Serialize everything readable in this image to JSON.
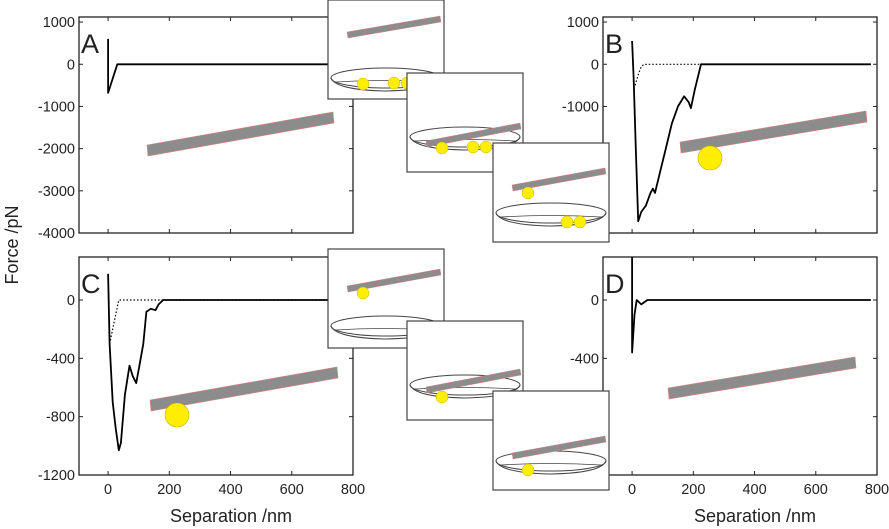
{
  "figure": {
    "ylabel": "Force /pN",
    "xlabel": "Separation /nm",
    "colors": {
      "curve": "#000000",
      "cantilever": "#8c8c8c",
      "cantilever_edge": "#e08080",
      "bead": "#ffee00",
      "dish": "#444444"
    }
  },
  "chart_data": [
    {
      "panel": "A",
      "type": "line",
      "xlim": [
        -95,
        800
      ],
      "ylim": [
        -4000,
        1120
      ],
      "xticks": [
        0,
        200,
        400,
        600,
        800
      ],
      "yticks": [
        1000,
        0,
        -1000,
        -2000,
        -3000,
        -4000
      ],
      "show_xtick_labels": false,
      "grid": false,
      "series": [
        {
          "style": "solid",
          "x": [
            0,
            0,
            30,
            100,
            200,
            300,
            400,
            500,
            600,
            750
          ],
          "y": [
            600,
            -680,
            0,
            0,
            0,
            0,
            0,
            0,
            0,
            0
          ]
        }
      ]
    },
    {
      "panel": "B",
      "type": "line",
      "xlim": [
        -95,
        800
      ],
      "ylim": [
        -4000,
        1120
      ],
      "xticks": [
        0,
        200,
        400,
        600,
        800
      ],
      "yticks": [
        1000,
        0,
        -1000,
        -2000,
        -3000,
        -4000
      ],
      "show_xtick_labels": false,
      "grid": false,
      "series": [
        {
          "style": "solid",
          "x": [
            0,
            5,
            12,
            20,
            30,
            45,
            60,
            68,
            75,
            90,
            110,
            130,
            150,
            170,
            185,
            192,
            205,
            225,
            780
          ],
          "y": [
            550,
            -300,
            -2000,
            -3720,
            -3500,
            -3350,
            -3050,
            -2950,
            -3050,
            -2600,
            -2000,
            -1400,
            -1000,
            -760,
            -900,
            -1040,
            -600,
            0,
            0
          ]
        },
        {
          "style": "dotted",
          "x": [
            10,
            20,
            30,
            40,
            780
          ],
          "y": [
            -500,
            -250,
            -50,
            0,
            0
          ]
        }
      ]
    },
    {
      "panel": "C",
      "type": "line",
      "xlim": [
        -95,
        800
      ],
      "ylim": [
        -1200,
        295
      ],
      "xticks": [
        0,
        200,
        400,
        600,
        800
      ],
      "yticks": [
        0,
        -400,
        -800,
        -1200
      ],
      "show_xtick_labels": true,
      "grid": false,
      "series": [
        {
          "style": "solid",
          "x": [
            0,
            5,
            15,
            25,
            35,
            42,
            55,
            70,
            80,
            92,
            105,
            115,
            125,
            140,
            155,
            165,
            180,
            750
          ],
          "y": [
            180,
            -300,
            -700,
            -880,
            -1030,
            -980,
            -650,
            -450,
            -520,
            -570,
            -420,
            -300,
            -80,
            -60,
            -70,
            -30,
            0,
            0
          ]
        },
        {
          "style": "dotted",
          "x": [
            5,
            15,
            25,
            35,
            750
          ],
          "y": [
            -300,
            -200,
            -100,
            0,
            0
          ]
        }
      ]
    },
    {
      "panel": "D",
      "type": "line",
      "xlim": [
        -95,
        800
      ],
      "ylim": [
        -1200,
        295
      ],
      "xticks": [
        0,
        200,
        400,
        600,
        800
      ],
      "yticks": [
        0,
        -400,
        -800,
        -1200
      ],
      "show_xtick_labels": true,
      "grid": false,
      "series": [
        {
          "style": "solid",
          "x": [
            0,
            0,
            8,
            15,
            30,
            50,
            780
          ],
          "y": [
            400,
            -360,
            -100,
            0,
            -30,
            0,
            0
          ]
        }
      ]
    }
  ]
}
